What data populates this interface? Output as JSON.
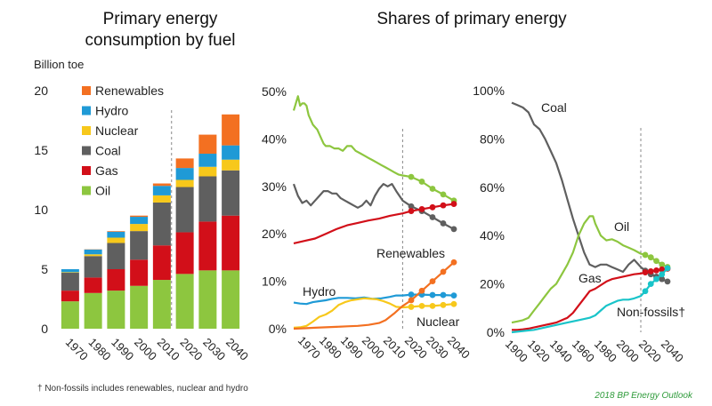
{
  "titles": {
    "left": "Primary energy consumption by fuel",
    "middle": "Shares of primary energy"
  },
  "unit_label": "Billion toe",
  "footnote": "† Non-fossils includes renewables, nuclear and hydro",
  "source": "2018 BP Energy Outlook",
  "colors": {
    "renewables": "#f37021",
    "hydro": "#1f9ad6",
    "nuclear": "#f7c81b",
    "coal": "#5f5f5f",
    "gas": "#d20f19",
    "oil": "#8dc63f",
    "nonfossils": "#19c4c9",
    "divider": "#888888"
  },
  "chart_data": [
    {
      "type": "bar",
      "title": "Primary energy consumption by fuel",
      "ylabel": "Billion toe",
      "categories": [
        "1970",
        "1980",
        "1990",
        "2000",
        "2010",
        "2020",
        "2030",
        "2040"
      ],
      "ylim": [
        0,
        20
      ],
      "yticks": [
        0,
        5,
        10,
        15,
        20
      ],
      "projection_start": "2020",
      "legend_position": "top-left",
      "series": [
        {
          "name": "Oil",
          "color_key": "oil",
          "values": [
            2.3,
            3.0,
            3.2,
            3.6,
            4.1,
            4.6,
            4.9,
            4.9
          ]
        },
        {
          "name": "Gas",
          "color_key": "gas",
          "values": [
            0.9,
            1.3,
            1.8,
            2.2,
            2.9,
            3.5,
            4.1,
            4.6
          ]
        },
        {
          "name": "Coal",
          "color_key": "coal",
          "values": [
            1.5,
            1.8,
            2.2,
            2.4,
            3.6,
            3.8,
            3.8,
            3.8
          ]
        },
        {
          "name": "Nuclear",
          "color_key": "nuclear",
          "values": [
            0.05,
            0.15,
            0.45,
            0.6,
            0.6,
            0.6,
            0.8,
            0.9
          ]
        },
        {
          "name": "Hydro",
          "color_key": "hydro",
          "values": [
            0.25,
            0.4,
            0.5,
            0.6,
            0.8,
            1.0,
            1.1,
            1.2
          ]
        },
        {
          "name": "Renewables",
          "color_key": "renewables",
          "values": [
            0.0,
            0.02,
            0.05,
            0.1,
            0.2,
            0.8,
            1.6,
            2.6
          ]
        }
      ]
    },
    {
      "type": "line",
      "ylim": [
        0,
        50
      ],
      "yticks": [
        0,
        10,
        20,
        30,
        40,
        50
      ],
      "ytick_labels": [
        "0%",
        "10%",
        "20%",
        "30%",
        "40%",
        "50%"
      ],
      "xlim": [
        1965,
        2040
      ],
      "xticks": [
        1970,
        1980,
        1990,
        2000,
        2010,
        2020,
        2030,
        2040
      ],
      "projection_start": 2016,
      "projection_markers": [
        2020,
        2025,
        2030,
        2035,
        2040
      ],
      "series": [
        {
          "name": "",
          "color_key": "oil",
          "x": [
            1965,
            1966,
            1967,
            1968,
            1969,
            1970,
            1971,
            1972,
            1973,
            1974,
            1975,
            1976,
            1977,
            1978,
            1979,
            1980,
            1982,
            1984,
            1986,
            1988,
            1990,
            1992,
            1994,
            1996,
            1998,
            2000,
            2002,
            2004,
            2006,
            2008,
            2010,
            2012,
            2014,
            2016,
            2020,
            2025,
            2030,
            2035,
            2040
          ],
          "y": [
            46,
            47.5,
            49,
            47,
            47.5,
            47.5,
            47,
            45,
            44,
            43,
            42.5,
            42,
            41,
            40,
            39,
            38.5,
            38.5,
            38,
            38,
            37.5,
            38.5,
            38.5,
            37.5,
            37,
            36.5,
            36,
            35.5,
            35,
            34.5,
            34,
            33.5,
            33,
            32.5,
            32.3,
            32,
            31,
            29.5,
            28.3,
            27
          ]
        },
        {
          "name": "",
          "color_key": "coal",
          "x": [
            1965,
            1967,
            1969,
            1971,
            1973,
            1975,
            1977,
            1979,
            1981,
            1983,
            1985,
            1987,
            1989,
            1991,
            1993,
            1995,
            1997,
            1999,
            2001,
            2003,
            2005,
            2007,
            2009,
            2011,
            2013,
            2016,
            2020,
            2025,
            2030,
            2035,
            2040
          ],
          "y": [
            30.5,
            28,
            26.5,
            27,
            26,
            27,
            28,
            29,
            29,
            28.5,
            28.5,
            27.5,
            27,
            26.5,
            26,
            25.5,
            26,
            27,
            26,
            28,
            29.5,
            30.5,
            30,
            30.5,
            29,
            27,
            25.8,
            24.8,
            23.5,
            22.2,
            21
          ]
        },
        {
          "name": "",
          "color_key": "gas",
          "x": [
            1965,
            1970,
            1975,
            1980,
            1985,
            1990,
            1995,
            2000,
            2005,
            2010,
            2016,
            2020,
            2025,
            2030,
            2035,
            2040
          ],
          "y": [
            18,
            18.5,
            19,
            20,
            21,
            21.8,
            22.3,
            22.8,
            23.2,
            23.8,
            24.3,
            24.8,
            25.2,
            25.6,
            26,
            26.3
          ]
        },
        {
          "name": "Hydro",
          "color_key": "hydro",
          "x": [
            1965,
            1968,
            1971,
            1974,
            1977,
            1980,
            1983,
            1986,
            1990,
            1994,
            1998,
            2002,
            2006,
            2010,
            2013,
            2016,
            2020,
            2025,
            2030,
            2035,
            2040
          ],
          "y": [
            5.5,
            5.3,
            5.2,
            5.6,
            5.8,
            6,
            6.3,
            6.5,
            6.5,
            6.4,
            6.6,
            6.3,
            6.4,
            6.7,
            7,
            7,
            7.2,
            7.2,
            7.1,
            7.1,
            7
          ]
        },
        {
          "name": "Nuclear",
          "color_key": "nuclear",
          "x": [
            1965,
            1968,
            1971,
            1974,
            1977,
            1980,
            1983,
            1986,
            1989,
            1992,
            1995,
            1998,
            2001,
            2004,
            2007,
            2010,
            2013,
            2016,
            2020,
            2025,
            2030,
            2035,
            2040
          ],
          "y": [
            0.2,
            0.3,
            0.6,
            1.5,
            2.5,
            3,
            3.8,
            5,
            5.6,
            6,
            6.2,
            6.4,
            6.3,
            6.2,
            5.8,
            5.3,
            4.6,
            4.5,
            4.6,
            4.8,
            4.8,
            5,
            5.2
          ]
        },
        {
          "name": "Renewables",
          "color_key": "renewables",
          "x": [
            1965,
            1970,
            1975,
            1980,
            1985,
            1990,
            1995,
            2000,
            2005,
            2008,
            2010,
            2012,
            2014,
            2016,
            2020,
            2025,
            2030,
            2035,
            2040
          ],
          "y": [
            0,
            0.1,
            0.2,
            0.3,
            0.4,
            0.5,
            0.6,
            0.8,
            1.2,
            1.8,
            2.5,
            3.2,
            4,
            4.8,
            6,
            8,
            10,
            12,
            14
          ]
        }
      ]
    },
    {
      "type": "line",
      "ylim": [
        0,
        100
      ],
      "yticks": [
        0,
        20,
        40,
        60,
        80,
        100
      ],
      "ytick_labels": [
        "0%",
        "20%",
        "40%",
        "60%",
        "80%",
        "100%"
      ],
      "xlim": [
        1900,
        2040
      ],
      "xticks": [
        1900,
        1920,
        1940,
        1960,
        1980,
        2000,
        2020,
        2040
      ],
      "projection_start": 2016,
      "projection_markers": [
        2020,
        2025,
        2030,
        2035,
        2040
      ],
      "series": [
        {
          "name": "Coal",
          "color_key": "coal",
          "x": [
            1900,
            1905,
            1910,
            1915,
            1920,
            1925,
            1930,
            1935,
            1940,
            1945,
            1950,
            1955,
            1960,
            1965,
            1970,
            1975,
            1980,
            1985,
            1990,
            1995,
            2000,
            2005,
            2010,
            2016,
            2020,
            2025,
            2030,
            2035,
            2040
          ],
          "y": [
            95,
            94,
            93,
            91,
            86,
            84,
            80,
            75,
            70,
            63,
            55,
            47,
            40,
            33,
            28,
            27,
            28,
            28,
            27,
            26,
            25,
            28,
            30,
            27,
            25.5,
            24,
            23,
            22,
            21
          ]
        },
        {
          "name": "Oil",
          "color_key": "oil",
          "x": [
            1900,
            1905,
            1910,
            1915,
            1920,
            1925,
            1930,
            1935,
            1940,
            1945,
            1950,
            1955,
            1960,
            1965,
            1970,
            1973,
            1975,
            1980,
            1985,
            1990,
            1995,
            2000,
            2005,
            2010,
            2016,
            2020,
            2025,
            2030,
            2035,
            2040
          ],
          "y": [
            4,
            4.5,
            5,
            6,
            9,
            12,
            15,
            18,
            20,
            24,
            28,
            33,
            40,
            45,
            48,
            48,
            45,
            40,
            38,
            38.5,
            37.5,
            36,
            35,
            34,
            32.5,
            32,
            31,
            29.5,
            28,
            27
          ]
        },
        {
          "name": "Gas",
          "color_key": "gas",
          "x": [
            1900,
            1905,
            1910,
            1915,
            1920,
            1925,
            1930,
            1935,
            1940,
            1945,
            1950,
            1955,
            1960,
            1965,
            1970,
            1975,
            1980,
            1985,
            1990,
            1995,
            2000,
            2005,
            2010,
            2016,
            2020,
            2025,
            2030,
            2035,
            2040
          ],
          "y": [
            1,
            1,
            1.2,
            1.5,
            2,
            2.5,
            3,
            3.5,
            4,
            5,
            6,
            8,
            11,
            14,
            17,
            18,
            19.5,
            21,
            22,
            22.5,
            23,
            23.5,
            24,
            24.3,
            24.8,
            25.2,
            25.6,
            26,
            26.3
          ]
        },
        {
          "name": "Non-fossils†",
          "color_key": "nonfossils",
          "x": [
            1900,
            1910,
            1920,
            1930,
            1940,
            1950,
            1960,
            1970,
            1975,
            1980,
            1985,
            1990,
            1995,
            2000,
            2005,
            2010,
            2016,
            2020,
            2025,
            2030,
            2035,
            2040
          ],
          "y": [
            0,
            0.5,
            1,
            2,
            3,
            4,
            5,
            6,
            7,
            9,
            11,
            12,
            13,
            13.5,
            13.5,
            14,
            15,
            17,
            20,
            22,
            24,
            26.5
          ]
        }
      ]
    }
  ]
}
